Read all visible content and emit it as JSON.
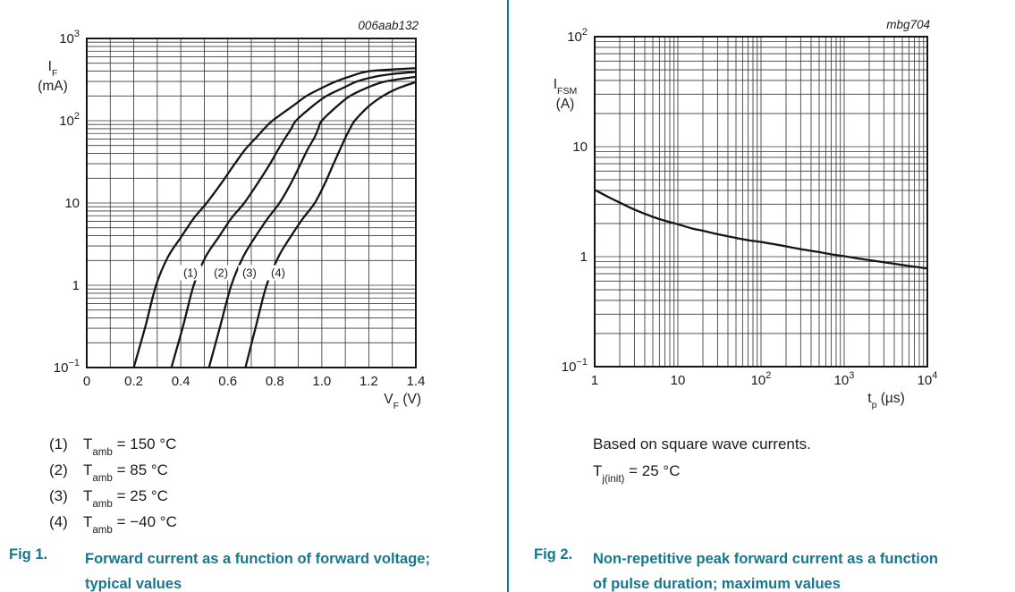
{
  "palette": {
    "caption_teal": "#15788E",
    "divider": "#15788E",
    "curve": "#161616",
    "grid": "#3a3a3a",
    "text": "#1d1d1f",
    "background": "#ffffff"
  },
  "fig1": {
    "plot_id": "006aab132",
    "y_axis_title": {
      "sym": "I",
      "sub": "F",
      "unit": "(mA)"
    },
    "x_axis_title": {
      "sym": "V",
      "sub": "F",
      "unit": " (V)"
    }
  },
  "fig2": {
    "plot_id": "mbg704",
    "y_axis_title": {
      "sym": "I",
      "sub": "FSM",
      "unit": "(A)"
    },
    "x_axis_title": {
      "sym": "t",
      "sub": "p",
      "unit": " (µs)"
    }
  },
  "legend": {
    "items": [
      {
        "num": "(1)",
        "sym": "T",
        "sub": "amb",
        "rest": " = 150 °C"
      },
      {
        "num": "(2)",
        "sym": "T",
        "sub": "amb",
        "rest": " = 85 °C"
      },
      {
        "num": "(3)",
        "sym": "T",
        "sub": "amb",
        "rest": " = 25 °C"
      },
      {
        "num": "(4)",
        "sym": "T",
        "sub": "amb",
        "rest": " = −40 °C"
      }
    ]
  },
  "notes": {
    "line1": "Based on square wave currents.",
    "line2": {
      "sym": "T",
      "sub": "j(init)",
      "rest": " = 25 °C"
    }
  },
  "captions": {
    "fig1": {
      "label": "Fig 1.",
      "text": "Forward current as a function of forward voltage; typical values"
    },
    "fig2": {
      "label": "Fig 2.",
      "text": "Non-repetitive peak forward current as a function of pulse duration; maximum values"
    }
  },
  "chart_data": [
    {
      "type": "line",
      "title": "Forward current as a function of forward voltage; typical values",
      "plot_id": "006aab132",
      "xlabel": "VF (V)",
      "ylabel": "IF (mA)",
      "x_scale": "linear",
      "y_scale": "log",
      "xlim": [
        0,
        1.4
      ],
      "x_minor_step": 0.1,
      "ylog_range": [
        -1,
        3
      ],
      "x_ticks": [
        {
          "v": 0,
          "b": "0"
        },
        {
          "v": 0.2,
          "b": "0.2"
        },
        {
          "v": 0.4,
          "b": "0.4"
        },
        {
          "v": 0.6,
          "b": "0.6"
        },
        {
          "v": 0.8,
          "b": "0.8"
        },
        {
          "v": 1.0,
          "b": "1.0"
        },
        {
          "v": 1.2,
          "b": "1.2"
        },
        {
          "v": 1.4,
          "b": "1.4"
        }
      ],
      "y_ticks": [
        {
          "v": 1000,
          "b": "10",
          "e": "3"
        },
        {
          "v": 100,
          "b": "10",
          "e": "2"
        },
        {
          "v": 10,
          "b": "10"
        },
        {
          "v": 1,
          "b": "1"
        },
        {
          "v": 0.1,
          "b": "10",
          "e": "−1"
        }
      ],
      "series": [
        {
          "name": "(1) Tamb = 150 °C",
          "tag": "(1)",
          "tag_v": 0.441,
          "tag_i": 1.42,
          "points": [
            [
              0.2,
              0.1
            ],
            [
              0.25,
              0.32
            ],
            [
              0.295,
              1
            ],
            [
              0.345,
              2.2
            ],
            [
              0.4,
              3.8
            ],
            [
              0.455,
              6.5
            ],
            [
              0.51,
              10
            ],
            [
              0.57,
              17
            ],
            [
              0.63,
              30
            ],
            [
              0.675,
              45
            ],
            [
              0.72,
              62
            ],
            [
              0.755,
              80
            ],
            [
              0.79,
              100
            ],
            [
              0.875,
              150
            ],
            [
              0.935,
              200
            ],
            [
              1.0,
              250
            ],
            [
              1.06,
              300
            ],
            [
              1.12,
              345
            ],
            [
              1.19,
              395
            ],
            [
              1.3,
              420
            ],
            [
              1.4,
              435
            ]
          ]
        },
        {
          "name": "(2) Tamb = 85 °C",
          "tag": "(2)",
          "tag_v": 0.571,
          "tag_i": 1.42,
          "points": [
            [
              0.36,
              0.1
            ],
            [
              0.41,
              0.32
            ],
            [
              0.455,
              1
            ],
            [
              0.505,
              2.2
            ],
            [
              0.56,
              3.8
            ],
            [
              0.615,
              6.5
            ],
            [
              0.67,
              10
            ],
            [
              0.725,
              17
            ],
            [
              0.78,
              30
            ],
            [
              0.815,
              45
            ],
            [
              0.845,
              62
            ],
            [
              0.87,
              80
            ],
            [
              0.89,
              100
            ],
            [
              0.96,
              150
            ],
            [
              1.02,
              200
            ],
            [
              1.09,
              250
            ],
            [
              1.15,
              300
            ],
            [
              1.22,
              340
            ],
            [
              1.3,
              370
            ],
            [
              1.4,
              392
            ]
          ]
        },
        {
          "name": "(3) Tamb = 25 °C",
          "tag": "(3)",
          "tag_v": 0.692,
          "tag_i": 1.42,
          "points": [
            [
              0.52,
              0.1
            ],
            [
              0.568,
              0.32
            ],
            [
              0.615,
              1
            ],
            [
              0.665,
              2.2
            ],
            [
              0.715,
              3.8
            ],
            [
              0.77,
              6.5
            ],
            [
              0.82,
              10
            ],
            [
              0.867,
              17
            ],
            [
              0.91,
              30
            ],
            [
              0.94,
              45
            ],
            [
              0.968,
              62
            ],
            [
              0.985,
              80
            ],
            [
              1.0,
              100
            ],
            [
              1.065,
              150
            ],
            [
              1.12,
              200
            ],
            [
              1.19,
              250
            ],
            [
              1.26,
              295
            ],
            [
              1.33,
              320
            ],
            [
              1.4,
              342
            ]
          ]
        },
        {
          "name": "(4) Tamb = −40 °C",
          "tag": "(4)",
          "tag_v": 0.814,
          "tag_i": 1.42,
          "points": [
            [
              0.675,
              0.1
            ],
            [
              0.72,
              0.32
            ],
            [
              0.765,
              1
            ],
            [
              0.815,
              2.2
            ],
            [
              0.865,
              3.8
            ],
            [
              0.92,
              6.5
            ],
            [
              0.97,
              10
            ],
            [
              1.012,
              17
            ],
            [
              1.05,
              30
            ],
            [
              1.078,
              45
            ],
            [
              1.1,
              62
            ],
            [
              1.12,
              80
            ],
            [
              1.14,
              100
            ],
            [
              1.2,
              150
            ],
            [
              1.26,
              200
            ],
            [
              1.32,
              245
            ],
            [
              1.4,
              295
            ]
          ]
        }
      ]
    },
    {
      "type": "line",
      "title": "Non-repetitive peak forward current as a function of pulse duration; maximum values",
      "plot_id": "mbg704",
      "xlabel": "tp (µs)",
      "ylabel": "IFSM (A)",
      "x_scale": "log",
      "y_scale": "log",
      "xlog_range": [
        0,
        4
      ],
      "ylog_range": [
        -1,
        2
      ],
      "x_ticks": [
        {
          "v": 1,
          "b": "1"
        },
        {
          "v": 10,
          "b": "10"
        },
        {
          "v": 100,
          "b": "10",
          "e": "2"
        },
        {
          "v": 1000,
          "b": "10",
          "e": "3"
        },
        {
          "v": 10000,
          "b": "10",
          "e": "4"
        }
      ],
      "y_ticks": [
        {
          "v": 100,
          "b": "10",
          "e": "2"
        },
        {
          "v": 10,
          "b": "10"
        },
        {
          "v": 1,
          "b": "1"
        },
        {
          "v": 0.1,
          "b": "10",
          "e": "−1"
        }
      ],
      "series": [
        {
          "name": "IFSM maximum",
          "tag": "",
          "points": [
            [
              1,
              4.05
            ],
            [
              1.5,
              3.45
            ],
            [
              2,
              3.1
            ],
            [
              3,
              2.68
            ],
            [
              5,
              2.3
            ],
            [
              7,
              2.12
            ],
            [
              10,
              1.97
            ],
            [
              15,
              1.8
            ],
            [
              20,
              1.72
            ],
            [
              30,
              1.6
            ],
            [
              50,
              1.48
            ],
            [
              70,
              1.41
            ],
            [
              100,
              1.36
            ],
            [
              150,
              1.29
            ],
            [
              200,
              1.24
            ],
            [
              300,
              1.17
            ],
            [
              500,
              1.1
            ],
            [
              700,
              1.05
            ],
            [
              1000,
              1.01
            ],
            [
              1500,
              0.96
            ],
            [
              2000,
              0.93
            ],
            [
              3000,
              0.89
            ],
            [
              5000,
              0.84
            ],
            [
              7000,
              0.81
            ],
            [
              10000,
              0.78
            ]
          ]
        }
      ]
    }
  ]
}
